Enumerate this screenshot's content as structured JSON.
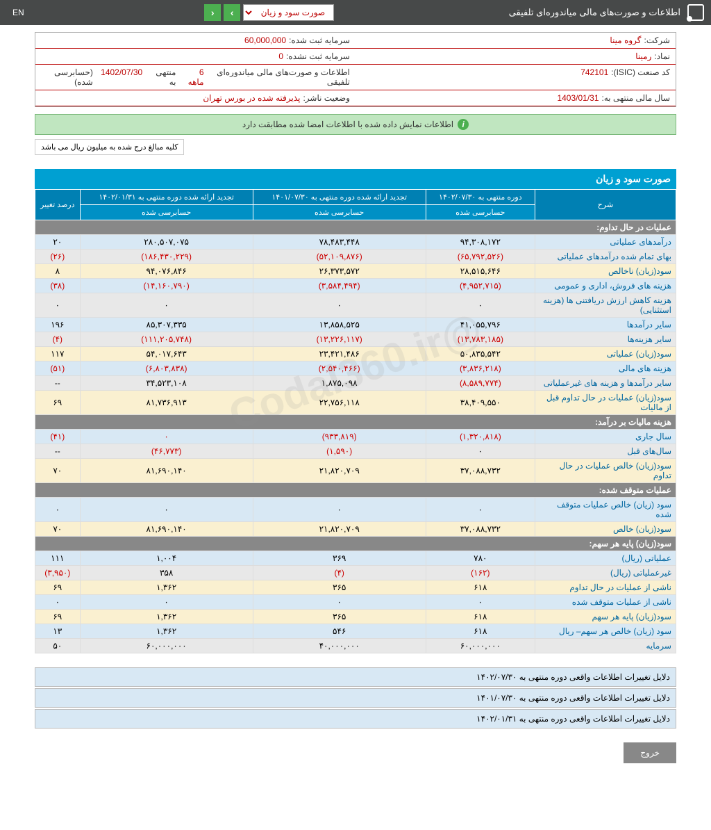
{
  "header": {
    "title": "اطلاعات و صورت‌های مالی میاندوره‌ای تلفیقی",
    "dropdown": "صورت سود و زیان",
    "lang": "EN"
  },
  "info": {
    "company_label": "شرکت:",
    "company_value": "گروه مینا",
    "capital_reg_label": "سرمایه ثبت شده:",
    "capital_reg_value": "60,000,000",
    "symbol_label": "نماد:",
    "symbol_value": "رمینا",
    "capital_unreg_label": "سرمایه ثبت نشده:",
    "capital_unreg_value": "0",
    "isic_label": "کد صنعت (ISIC):",
    "isic_value": "742101",
    "report_label": "اطلاعات و صورت‌های مالی میاندوره‌ای تلفیقی",
    "report_period": "6 ماهه",
    "report_end": "منتهی به",
    "report_date": "1402/07/30",
    "report_audit": "(حسابرسی شده)",
    "fiscal_label": "سال مالی منتهی به:",
    "fiscal_value": "1403/01/31",
    "status_label": "وضعیت ناشر:",
    "status_value": "پذیرفته شده در بورس تهران"
  },
  "banner": "اطلاعات نمایش داده شده با اطلاعات امضا شده مطابقت دارد",
  "note": "کلیه مبالغ درج شده به میلیون ریال می باشد",
  "table_title": "صورت سود و زیان",
  "headers": {
    "desc": "شرح",
    "col1_top": "دوره منتهی به ۱۴۰۲/۰۷/۳۰",
    "col1_sub": "حسابرسی شده",
    "col2_top": "تجدید ارائه شده دوره منتهی به ۱۴۰۱/۰۷/۳۰",
    "col2_sub": "حسابرسی شده",
    "col3_top": "تجدید ارائه شده دوره منتهی به ۱۴۰۲/۰۱/۳۱",
    "col3_sub": "حسابرسی شده",
    "pct": "درصد تغییر"
  },
  "rows": [
    {
      "type": "cat",
      "desc": "عملیات در حال تداوم:"
    },
    {
      "type": "blue",
      "desc": "درآمدهای عملیاتی",
      "c1": "۹۴,۳۰۸,۱۷۲",
      "c2": "۷۸,۴۸۳,۴۴۸",
      "c3": "۲۸۰,۵۰۷,۰۷۵",
      "pct": "۲۰"
    },
    {
      "type": "gray",
      "desc": "بهای تمام شده درآمدهای عملیاتی",
      "c1": "(۶۵,۷۹۲,۵۲۶)",
      "c2": "(۵۲,۱۰۹,۸۷۶)",
      "c3": "(۱۸۶,۴۳۰,۲۲۹)",
      "pct": "(۲۶)",
      "neg": true
    },
    {
      "type": "yellow",
      "desc": "سود(زیان) ناخالص",
      "c1": "۲۸,۵۱۵,۶۴۶",
      "c2": "۲۶,۳۷۳,۵۷۲",
      "c3": "۹۴,۰۷۶,۸۴۶",
      "pct": "۸"
    },
    {
      "type": "blue",
      "desc": "هزینه های فروش، اداری و عمومی",
      "c1": "(۴,۹۵۲,۷۱۵)",
      "c2": "(۳,۵۸۴,۴۹۴)",
      "c3": "(۱۴,۱۶۰,۷۹۰)",
      "pct": "(۳۸)",
      "neg": true
    },
    {
      "type": "gray",
      "desc": "هزینه کاهش ارزش دریافتنی ها (هزینه استثنایی)",
      "c1": "۰",
      "c2": "۰",
      "c3": "۰",
      "pct": "۰"
    },
    {
      "type": "blue",
      "desc": "سایر درآمدها",
      "c1": "۴۱,۰۵۵,۷۹۶",
      "c2": "۱۳,۸۵۸,۵۲۵",
      "c3": "۸۵,۳۰۷,۳۳۵",
      "pct": "۱۹۶"
    },
    {
      "type": "gray",
      "desc": "سایر هزینه‌ها",
      "c1": "(۱۳,۷۸۳,۱۸۵)",
      "c2": "(۱۳,۲۲۶,۱۱۷)",
      "c3": "(۱۱۱,۲۰۵,۷۴۸)",
      "pct": "(۴)",
      "neg": true
    },
    {
      "type": "yellow",
      "desc": "سود(زیان) عملیاتی",
      "c1": "۵۰,۸۳۵,۵۴۲",
      "c2": "۲۳,۴۲۱,۴۸۶",
      "c3": "۵۴,۰۱۷,۶۴۳",
      "pct": "۱۱۷"
    },
    {
      "type": "blue",
      "desc": "هزینه های مالی",
      "c1": "(۳,۸۳۶,۲۱۸)",
      "c2": "(۲,۵۴۰,۴۶۶)",
      "c3": "(۶,۸۰۳,۸۳۸)",
      "pct": "(۵۱)",
      "neg": true
    },
    {
      "type": "gray",
      "desc": "سایر درآمدها و هزینه های غیرعملیاتی",
      "c1": "(۸,۵۸۹,۷۷۴)",
      "c2": "۱,۸۷۵,۰۹۸",
      "c3": "۳۴,۵۲۳,۱۰۸",
      "pct": "--",
      "c1neg": true
    },
    {
      "type": "yellow",
      "desc": "سود(زیان) عملیات در حال تداوم قبل از مالیات",
      "c1": "۳۸,۴۰۹,۵۵۰",
      "c2": "۲۲,۷۵۶,۱۱۸",
      "c3": "۸۱,۷۳۶,۹۱۳",
      "pct": "۶۹"
    },
    {
      "type": "cat",
      "desc": "هزینه مالیات بر درآمد:"
    },
    {
      "type": "blue",
      "desc": "سال جاری",
      "c1": "(۱,۳۲۰,۸۱۸)",
      "c2": "(۹۳۳,۸۱۹)",
      "c3": "۰",
      "pct": "(۴۱)",
      "neg": true
    },
    {
      "type": "gray",
      "desc": "سال‌های قبل",
      "c1": "۰",
      "c2": "(۱,۵۹۰)",
      "c3": "(۴۶,۷۷۳)",
      "pct": "--",
      "c2neg": true,
      "c3neg": true
    },
    {
      "type": "yellow",
      "desc": "سود(زیان) خالص عملیات در حال تداوم",
      "c1": "۳۷,۰۸۸,۷۳۲",
      "c2": "۲۱,۸۲۰,۷۰۹",
      "c3": "۸۱,۶۹۰,۱۴۰",
      "pct": "۷۰"
    },
    {
      "type": "cat",
      "desc": "عملیات متوقف شده:"
    },
    {
      "type": "blue",
      "desc": "سود (زیان) خالص عملیات متوقف شده",
      "c1": "۰",
      "c2": "۰",
      "c3": "۰",
      "pct": "۰"
    },
    {
      "type": "yellow",
      "desc": "سود(زیان) خالص",
      "c1": "۳۷,۰۸۸,۷۳۲",
      "c2": "۲۱,۸۲۰,۷۰۹",
      "c3": "۸۱,۶۹۰,۱۴۰",
      "pct": "۷۰"
    },
    {
      "type": "cat",
      "desc": "سود(زیان) پایه هر سهم:"
    },
    {
      "type": "blue",
      "desc": "عملیاتی (ریال)",
      "c1": "۷۸۰",
      "c2": "۳۶۹",
      "c3": "۱,۰۰۴",
      "pct": "۱۱۱"
    },
    {
      "type": "gray",
      "desc": "غیرعملیاتی (ریال)",
      "c1": "(۱۶۲)",
      "c2": "(۴)",
      "c3": "۳۵۸",
      "pct": "(۳,۹۵۰)",
      "c1neg": true,
      "c2neg": true,
      "pctneg": true
    },
    {
      "type": "yellow",
      "desc": "ناشی از عملیات در حال تداوم",
      "c1": "۶۱۸",
      "c2": "۳۶۵",
      "c3": "۱,۳۶۲",
      "pct": "۶۹"
    },
    {
      "type": "blue",
      "desc": "ناشی از عملیات متوقف شده",
      "c1": "۰",
      "c2": "۰",
      "c3": "۰",
      "pct": "۰"
    },
    {
      "type": "yellow",
      "desc": "سود(زیان) پایه هر سهم",
      "c1": "۶۱۸",
      "c2": "۳۶۵",
      "c3": "۱,۳۶۲",
      "pct": "۶۹"
    },
    {
      "type": "blue",
      "desc": "سود (زیان) خالص هر سهم– ریال",
      "c1": "۶۱۸",
      "c2": "۵۴۶",
      "c3": "۱,۳۶۲",
      "pct": "۱۳"
    },
    {
      "type": "gray",
      "desc": "سرمایه",
      "c1": "۶۰,۰۰۰,۰۰۰",
      "c2": "۴۰,۰۰۰,۰۰۰",
      "c3": "۶۰,۰۰۰,۰۰۰",
      "pct": "۵۰"
    }
  ],
  "reasons": [
    "دلایل تغییرات اطلاعات واقعی دوره منتهی به ۱۴۰۲/۰۷/۳۰",
    "دلایل تغییرات اطلاعات واقعی دوره منتهی به ۱۴۰۱/۰۷/۳۰",
    "دلایل تغییرات اطلاعات واقعی دوره منتهی به ۱۴۰۲/۰۱/۳۱"
  ],
  "exit": "خروج",
  "watermark": "@Codal360.ir"
}
